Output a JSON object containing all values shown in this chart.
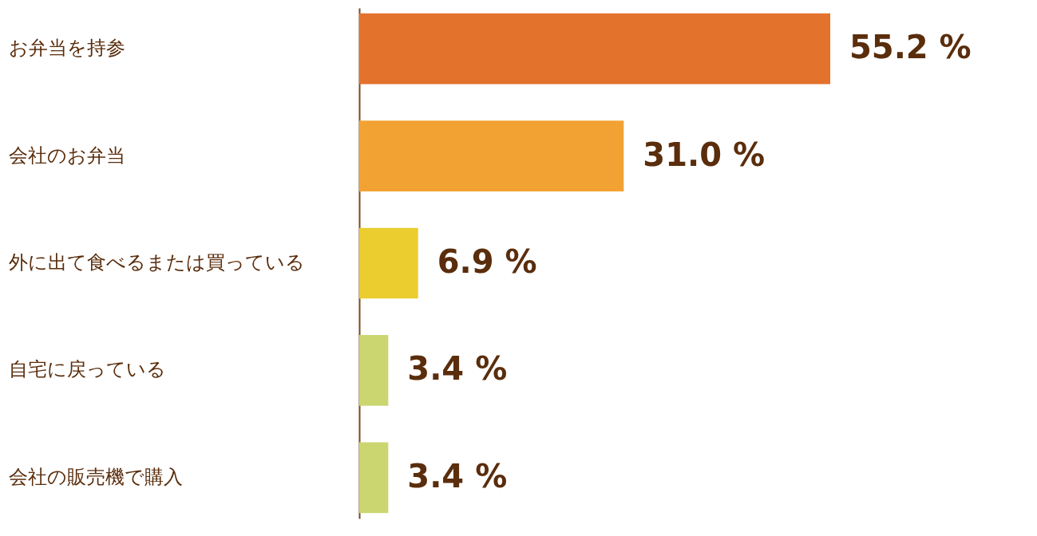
{
  "chart_data": {
    "type": "bar",
    "orientation": "horizontal",
    "categories": [
      "お弁当を持参",
      "会社のお弁当",
      "外に出て食べるまたは買っている",
      "自宅に戻っている",
      "会社の販売機で購入"
    ],
    "values": [
      55.2,
      31.0,
      6.9,
      3.4,
      3.4
    ],
    "colors": [
      "#e3722d",
      "#f2a233",
      "#ebcd2f",
      "#cbd670",
      "#cbd670"
    ],
    "value_labels": [
      "55.2 %",
      "31.0 %",
      "6.9 %",
      "3.4 %",
      "3.4 %"
    ],
    "tick_labels": "y"
  }
}
